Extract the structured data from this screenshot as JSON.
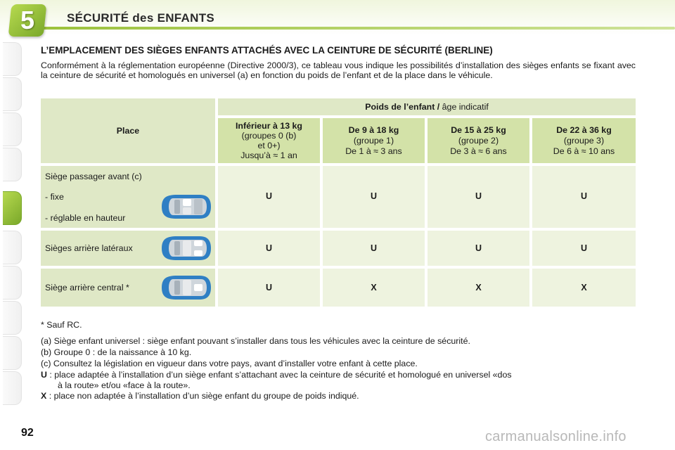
{
  "header": {
    "chapter_number": "5",
    "chapter_title": "SÉCURITÉ des ENFANTS"
  },
  "section": {
    "title": "L’EMPLACEMENT DES SIÈGES ENFANTS ATTACHÉS AVEC LA CEINTURE DE SÉCURITÉ (BERLINE)",
    "intro": "Conformément à la réglementation européenne (Directive 2000/3), ce tableau vous indique les possibilités d’installation des sièges enfants se fixant avec la ceinture de sécurité et homologués en universel (a) en fonction du poids de l’enfant et de la place dans le véhicule."
  },
  "table": {
    "place_header": "Place",
    "weight_header_bold": "Poids de l’enfant /",
    "weight_header_normal": " âge indicatif",
    "columns": [
      {
        "title": "Inférieur à 13 kg",
        "lines": [
          "(groupes 0 (b)",
          "et 0+)",
          "Jusqu’à ≈ 1 an"
        ]
      },
      {
        "title": "De 9 à 18 kg",
        "lines": [
          "(groupe 1)",
          "De 1 à ≈ 3 ans"
        ]
      },
      {
        "title": "De 15 à 25 kg",
        "lines": [
          "(groupe 2)",
          "De 3 à ≈ 6 ans"
        ]
      },
      {
        "title": "De 22 à 36 kg",
        "lines": [
          "(groupe 3)",
          "De 6 à ≈ 10 ans"
        ]
      }
    ],
    "rows": [
      {
        "label_lines": [
          "Siège passager avant (c)",
          "- fixe",
          "- réglable en hauteur"
        ],
        "values": [
          "U",
          "U",
          "U",
          "U"
        ]
      },
      {
        "label_lines": [
          "Sièges arrière latéraux"
        ],
        "values": [
          "U",
          "U",
          "U",
          "U"
        ]
      },
      {
        "label_lines": [
          "Siège arrière central *"
        ],
        "values": [
          "U",
          "X",
          "X",
          "X"
        ]
      }
    ]
  },
  "notes": {
    "asterisk": "* Sauf RC.",
    "a": "(a) Siège enfant universel : siège enfant pouvant s’installer dans tous les véhicules avec la ceinture de sécurité.",
    "b": "(b) Groupe 0 : de la naissance à 10 kg.",
    "c": "(c) Consultez la législation en vigueur dans votre pays, avant d’installer votre enfant à cette place.",
    "u_key": "U",
    "u_text_1": " : place adaptée à l’installation d’un siège enfant s’attachant avec la ceinture de sécurité et homologué en universel «dos",
    "u_text_2": "à la route» et/ou «face à la route».",
    "x_key": "X",
    "x_text": " : place non adaptée à l’installation d’un siège enfant du groupe de poids indiqué."
  },
  "page_number": "92",
  "watermark": "carmanualsonline.info",
  "colors": {
    "accent_green": "#8fba35",
    "table_cell": "#dfe8c6",
    "car_blue": "#2f7fc4"
  }
}
